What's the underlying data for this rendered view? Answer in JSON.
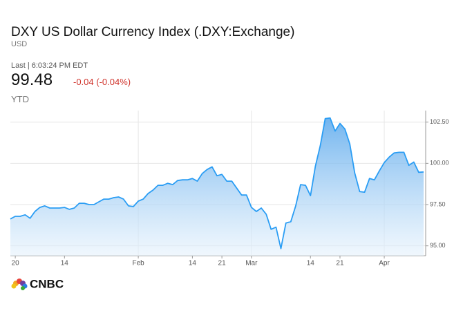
{
  "header": {
    "title": "DXY US Dollar Currency Index (.DXY:Exchange)",
    "currency": "USD",
    "last": "Last | 6:03:24 PM EDT",
    "price": "99.48",
    "change": "-0.04 (-0.04%)",
    "period": "YTD"
  },
  "logo": "CNBC",
  "chart_data": {
    "type": "line",
    "color": "#2a9df4",
    "grid": true,
    "categories": [
      null,
      "20",
      null,
      null,
      null,
      null,
      null,
      null,
      null,
      null,
      null,
      "14",
      null,
      null,
      null,
      null,
      null,
      null,
      null,
      null,
      null,
      null,
      null,
      null,
      null,
      null,
      "Feb",
      null,
      null,
      null,
      null,
      null,
      null,
      null,
      null,
      null,
      null,
      "14",
      null,
      null,
      null,
      null,
      null,
      "21",
      null,
      null,
      null,
      null,
      null,
      "Mar",
      null,
      null,
      null,
      null,
      null,
      null,
      null,
      null,
      null,
      null,
      null,
      "14",
      null,
      null,
      null,
      null,
      null,
      "21",
      null,
      null,
      null,
      null,
      null,
      null,
      null,
      null,
      "Apr",
      null,
      null,
      null,
      null,
      null,
      null,
      null,
      null
    ],
    "values": [
      96.63,
      96.79,
      96.79,
      96.88,
      96.67,
      97.08,
      97.33,
      97.42,
      97.29,
      97.29,
      97.29,
      97.33,
      97.21,
      97.29,
      97.58,
      97.58,
      97.5,
      97.5,
      97.67,
      97.83,
      97.83,
      97.92,
      97.96,
      97.83,
      97.42,
      97.38,
      97.71,
      97.83,
      98.17,
      98.38,
      98.67,
      98.67,
      98.79,
      98.71,
      98.96,
      99.0,
      99.0,
      99.08,
      98.92,
      99.38,
      99.63,
      99.79,
      99.25,
      99.33,
      98.92,
      98.92,
      98.5,
      98.08,
      98.08,
      97.33,
      97.08,
      97.29,
      96.92,
      96.0,
      96.13,
      94.83,
      96.38,
      96.46,
      97.42,
      98.71,
      98.67,
      98.04,
      99.83,
      101.08,
      102.71,
      102.75,
      101.96,
      102.42,
      102.08,
      101.17,
      99.42,
      98.29,
      98.25,
      99.08,
      99.0,
      99.54,
      100.04,
      100.38,
      100.63,
      100.67,
      100.67,
      99.88,
      100.08,
      99.46,
      99.48
    ],
    "ylim": [
      94.4,
      103.2
    ],
    "yticks": [
      {
        "value": 95,
        "label": "95.00"
      },
      {
        "value": 97.5,
        "label": "97.50"
      },
      {
        "value": 100,
        "label": "100.00"
      },
      {
        "value": 102.5,
        "label": "102.50"
      }
    ]
  }
}
